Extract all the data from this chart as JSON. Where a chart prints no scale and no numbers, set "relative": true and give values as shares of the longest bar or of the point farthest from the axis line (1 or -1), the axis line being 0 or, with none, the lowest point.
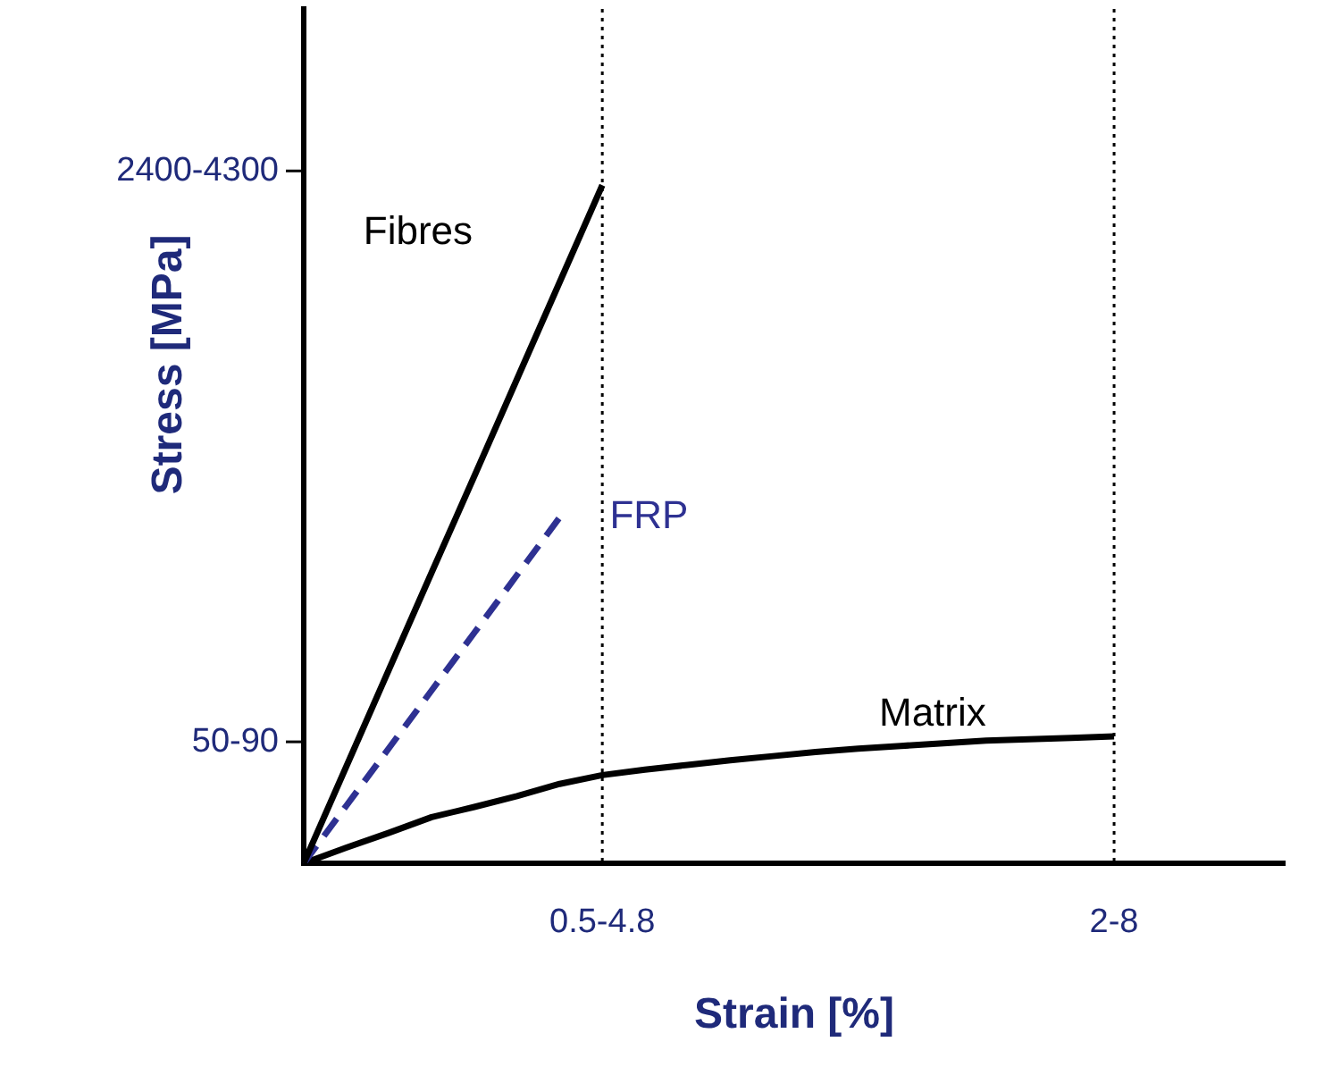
{
  "chart_data": {
    "type": "line",
    "relative": true,
    "xlabel": "Strain [%]",
    "ylabel": "Stress [MPa]",
    "categories": [
      null,
      null,
      null,
      null,
      null,
      null,
      null,
      "0.5-4.8",
      null,
      null,
      null,
      null,
      null,
      null,
      null,
      null,
      null,
      null,
      null,
      "2-8",
      null,
      null,
      null,
      null
    ],
    "series": [
      {
        "name": "Fibres",
        "color": "#000000",
        "line_style": "solid",
        "values": [
          0,
          0.143,
          0.286,
          0.429,
          0.571,
          0.714,
          0.857,
          1,
          null,
          null,
          null,
          null,
          null,
          null,
          null,
          null,
          null,
          null,
          null,
          null,
          null,
          null,
          null,
          null
        ]
      },
      {
        "name": "FRP",
        "color": "#2e3192",
        "line_style": "dashed",
        "values": [
          0,
          0.085,
          0.17,
          0.255,
          0.34,
          0.425,
          0.51,
          null,
          null,
          null,
          null,
          null,
          null,
          null,
          null,
          null,
          null,
          null,
          null,
          null,
          null,
          null,
          null,
          null
        ]
      },
      {
        "name": "Matrix",
        "color": "#000000",
        "line_style": "solid",
        "values": [
          0,
          0.023,
          0.045,
          0.068,
          0.083,
          0.099,
          0.117,
          0.13,
          0.138,
          0.145,
          0.152,
          0.158,
          0.164,
          0.169,
          0.173,
          0.177,
          0.181,
          0.183,
          0.185,
          0.187,
          null,
          null,
          null,
          null
        ]
      }
    ],
    "annotations": [
      "50-90",
      "2400-4300"
    ],
    "ref_lines": [
      {
        "axis": "x",
        "value": "0.5-4.8",
        "color": "#000000",
        "line_style": "dotted"
      },
      {
        "axis": "x",
        "value": "2-8",
        "color": "#000000",
        "line_style": "dotted"
      }
    ],
    "marker": "none",
    "grid": false,
    "legend": false
  }
}
